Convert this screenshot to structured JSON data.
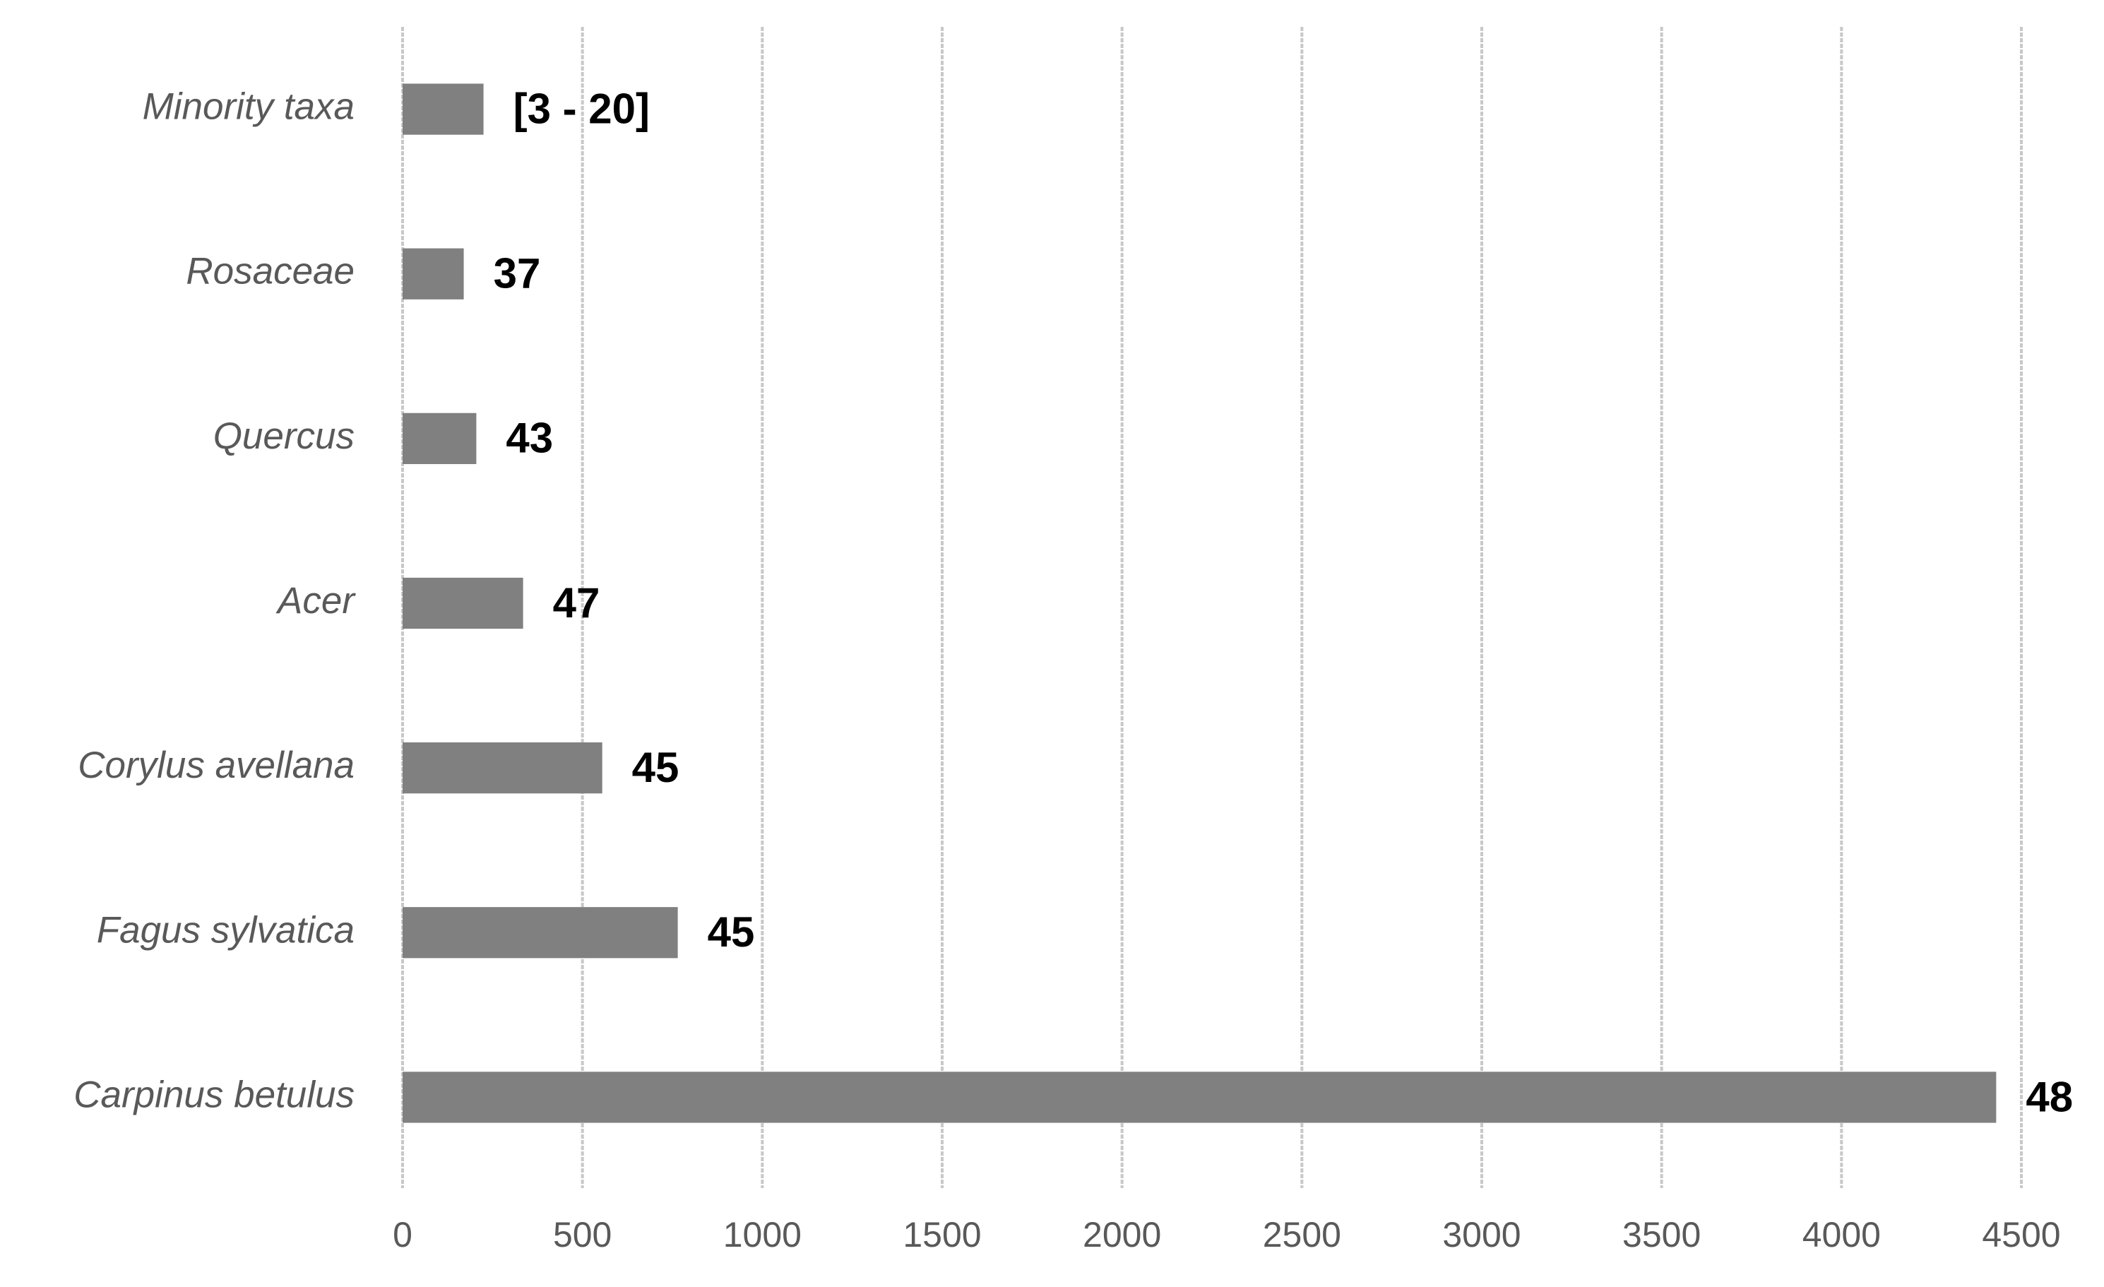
{
  "chart_data": {
    "type": "barh",
    "categories": [
      "Carpinus betulus",
      "Fagus sylvatica",
      "Corylus avellana",
      "Acer",
      "Quercus",
      "Rosaceae",
      "Minority taxa"
    ],
    "values": [
      4430,
      765,
      555,
      335,
      205,
      170,
      225
    ],
    "bar_labels": [
      "48",
      "45",
      "45",
      "47",
      "43",
      "37",
      "[3 - 20]"
    ],
    "color": "#808080",
    "xlim": [
      0,
      4500
    ],
    "xticks": [
      0,
      500,
      1000,
      1500,
      2000,
      2500,
      3000,
      3500,
      4000,
      4500
    ],
    "grid": true
  }
}
